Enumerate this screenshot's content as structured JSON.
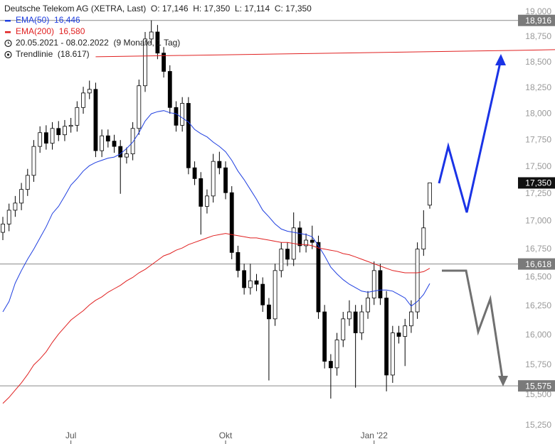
{
  "chart_data": {
    "type": "candlestick",
    "title": "Deutsche Telekom AG (XETRA, Last)",
    "quote": [
      "O: 17,146",
      "H: 17,350",
      "L: 17,114",
      "C: 17,350"
    ],
    "date_range": "20.05.2021 - 08.02.2022",
    "period": "(9 Monate, 1 Tag)",
    "log_scale": true,
    "grid": false,
    "candle_color": "#000000",
    "ylim": [
      15250,
      19000
    ],
    "yticks": [
      {
        "value": 15250,
        "label": "15,250"
      },
      {
        "value": 15500,
        "label": "15,500"
      },
      {
        "value": 15750,
        "label": "15,750"
      },
      {
        "value": 16000,
        "label": "16,000"
      },
      {
        "value": 16250,
        "label": "16,250"
      },
      {
        "value": 16500,
        "label": "16,500"
      },
      {
        "value": 16750,
        "label": "16,750"
      },
      {
        "value": 17000,
        "label": "17,000"
      },
      {
        "value": 17250,
        "label": "17,250"
      },
      {
        "value": 17500,
        "label": "17,500"
      },
      {
        "value": 17750,
        "label": "17,750"
      },
      {
        "value": 18000,
        "label": "18,000"
      },
      {
        "value": 18250,
        "label": "18,250"
      },
      {
        "value": 18500,
        "label": "18,500"
      },
      {
        "value": 18750,
        "label": "18,750"
      },
      {
        "value": 19000,
        "label": "19,000"
      }
    ],
    "categories": [
      null,
      null,
      null,
      null,
      null,
      null,
      null,
      null,
      null,
      null,
      null,
      "Jul",
      null,
      null,
      null,
      null,
      null,
      null,
      null,
      null,
      null,
      null,
      null,
      null,
      null,
      null,
      null,
      null,
      null,
      null,
      null,
      null,
      null,
      null,
      null,
      null,
      "Okt",
      null,
      null,
      null,
      null,
      null,
      null,
      null,
      null,
      null,
      null,
      null,
      null,
      null,
      null,
      null,
      null,
      null,
      null,
      null,
      null,
      null,
      null,
      null,
      "Jan '22",
      null,
      null,
      null,
      null,
      null,
      null,
      null,
      null,
      null
    ],
    "open": [
      16900,
      16975,
      17100,
      17165,
      17290,
      17420,
      17690,
      17820,
      17720,
      17860,
      17800,
      17880,
      17890,
      18060,
      18200,
      18235,
      17650,
      17790,
      17740,
      17690,
      17590,
      17620,
      17860,
      18270,
      18730,
      18800,
      18590,
      18410,
      18060,
      17890,
      18100,
      17490,
      17390,
      17135,
      17230,
      17550,
      17490,
      17260,
      16720,
      16560,
      16410,
      16470,
      16440,
      16260,
      16140,
      16560,
      16750,
      16660,
      16940,
      16780,
      16830,
      16810,
      16200,
      15780,
      15725,
      15960,
      16140,
      16200,
      16020,
      16200,
      16320,
      16560,
      16320,
      15665,
      16020,
      15990,
      16080,
      16200,
      16750,
      17146
    ],
    "high": [
      17040,
      17160,
      17230,
      17350,
      17480,
      17750,
      17880,
      17890,
      17920,
      17930,
      17940,
      17960,
      18120,
      18260,
      18320,
      18300,
      17850,
      17850,
      17800,
      17750,
      17680,
      17920,
      18330,
      18800,
      18916,
      18870,
      18650,
      18470,
      18120,
      18160,
      18160,
      17550,
      17450,
      17290,
      17620,
      17640,
      17550,
      17320,
      16780,
      16620,
      16620,
      16530,
      16500,
      16320,
      16620,
      16810,
      16810,
      17080,
      17000,
      16890,
      16960,
      16870,
      16260,
      15840,
      16020,
      16200,
      16300,
      16260,
      16260,
      16380,
      16640,
      16620,
      16380,
      16080,
      16080,
      16140,
      16300,
      16810,
      17100,
      17350
    ],
    "low": [
      16830,
      16910,
      17040,
      17100,
      17230,
      17360,
      17630,
      17660,
      17660,
      17740,
      17740,
      17820,
      17830,
      18000,
      18140,
      17590,
      17590,
      17680,
      17630,
      17250,
      17530,
      17560,
      17800,
      18210,
      18670,
      18530,
      18350,
      18000,
      17830,
      17830,
      17430,
      17330,
      16880,
      17070,
      17170,
      17430,
      17200,
      16660,
      16500,
      16350,
      16350,
      16380,
      16200,
      15620,
      16080,
      16500,
      16600,
      16600,
      16720,
      16720,
      16750,
      16140,
      15720,
      15470,
      15660,
      15900,
      16080,
      15560,
      15960,
      16140,
      16260,
      16260,
      15530,
      15600,
      15930,
      15740,
      16020,
      16140,
      16690,
      17114
    ],
    "close": [
      16975,
      17100,
      17165,
      17290,
      17420,
      17690,
      17820,
      17720,
      17860,
      17800,
      17880,
      17890,
      18060,
      18200,
      18235,
      17650,
      17790,
      17740,
      17690,
      17590,
      17620,
      17860,
      18270,
      18730,
      18800,
      18590,
      18410,
      18060,
      17890,
      18100,
      17490,
      17390,
      17135,
      17230,
      17550,
      17490,
      17260,
      16720,
      16560,
      16410,
      16470,
      16440,
      16260,
      16140,
      16560,
      16750,
      16660,
      16940,
      16780,
      16830,
      16810,
      16200,
      15780,
      15725,
      15960,
      16140,
      16200,
      16020,
      16200,
      16320,
      16560,
      16320,
      15665,
      16020,
      15990,
      16080,
      16200,
      16750,
      16940,
      17350
    ],
    "series": [
      {
        "name": "EMA(50)",
        "color": "#1f3fe0",
        "last_value_label": "16,446",
        "values": [
          16200,
          16290,
          16450,
          16560,
          16660,
          16750,
          16850,
          16950,
          17070,
          17135,
          17230,
          17330,
          17390,
          17460,
          17510,
          17540,
          17560,
          17580,
          17590,
          17620,
          17670,
          17730,
          17820,
          17930,
          18000,
          18020,
          18030,
          18010,
          18000,
          17960,
          17920,
          17850,
          17810,
          17780,
          17730,
          17690,
          17640,
          17560,
          17460,
          17380,
          17290,
          17200,
          17100,
          17040,
          16975,
          16930,
          16910,
          16900,
          16890,
          16880,
          16860,
          16780,
          16690,
          16590,
          16530,
          16480,
          16440,
          16410,
          16380,
          16370,
          16380,
          16390,
          16390,
          16380,
          16350,
          16320,
          16250,
          16290,
          16350,
          16446
        ]
      },
      {
        "name": "EMA(200)",
        "color": "#e02020",
        "last_value_label": "16,580",
        "values": [
          15430,
          15480,
          15540,
          15600,
          15670,
          15750,
          15800,
          15860,
          15940,
          16010,
          16070,
          16130,
          16170,
          16210,
          16260,
          16300,
          16330,
          16370,
          16400,
          16430,
          16470,
          16500,
          16540,
          16570,
          16610,
          16650,
          16690,
          16710,
          16740,
          16760,
          16790,
          16810,
          16830,
          16850,
          16870,
          16880,
          16890,
          16880,
          16870,
          16860,
          16850,
          16850,
          16840,
          16830,
          16820,
          16810,
          16810,
          16800,
          16790,
          16790,
          16780,
          16760,
          16750,
          16740,
          16730,
          16710,
          16700,
          16680,
          16660,
          16640,
          16620,
          16600,
          16580,
          16560,
          16550,
          16540,
          16540,
          16540,
          16550,
          16580
        ]
      }
    ],
    "trendline": {
      "name": "Trendlinie",
      "label": "(18.617)",
      "color": "#e02020",
      "values": [
        18554,
        18617
      ]
    },
    "levels": [
      {
        "value": 18916,
        "label": "18,916"
      },
      {
        "value": 16618,
        "label": "16,618"
      },
      {
        "value": 15575,
        "label": "15,575"
      }
    ],
    "last_price": {
      "value": 17350,
      "label": "17,350"
    }
  }
}
